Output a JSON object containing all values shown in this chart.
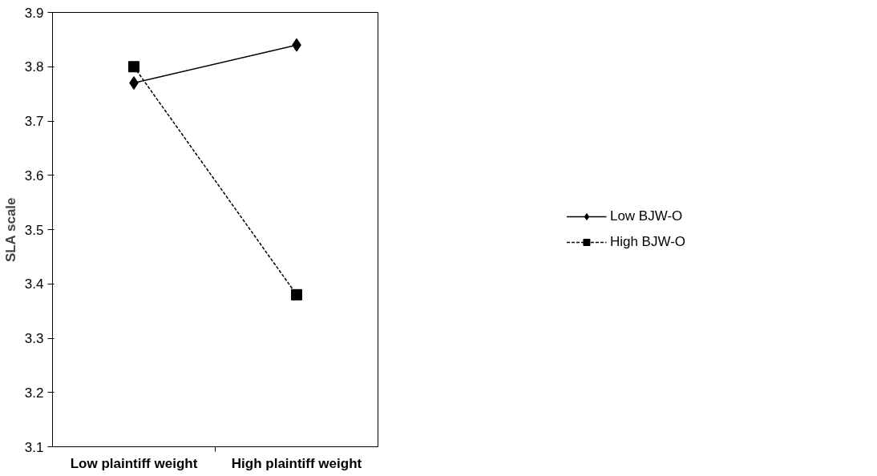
{
  "chart_data": {
    "type": "line",
    "ylabel": "SLA scale",
    "categories": [
      "Low plaintiff weight",
      "High plaintiff weight"
    ],
    "ylim": [
      3.1,
      3.9
    ],
    "yticks": [
      3.1,
      3.2,
      3.3,
      3.4,
      3.5,
      3.6,
      3.7,
      3.8,
      3.9
    ],
    "grid": false,
    "legend": "right",
    "series": [
      {
        "name": "Low BJW-O",
        "color": "#000000",
        "values": [
          3.77,
          3.84
        ],
        "marker": "diamond",
        "line_style": "solid"
      },
      {
        "name": "High BJW-O",
        "color": "#000000",
        "values": [
          3.8,
          3.38
        ],
        "marker": "square",
        "line_style": "dashed"
      }
    ]
  }
}
